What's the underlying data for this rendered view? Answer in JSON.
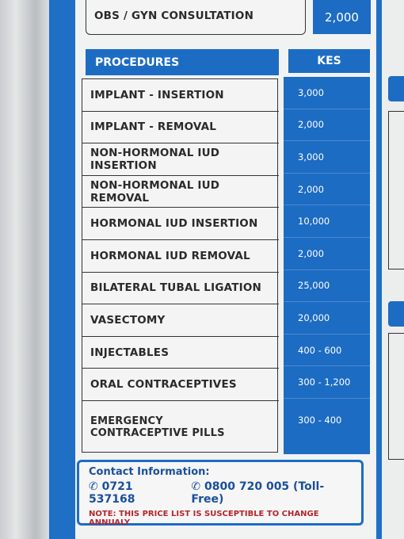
{
  "consultation": {
    "label": "OBS / GYN CONSULTATION",
    "price": "2,000"
  },
  "table": {
    "header": [
      "PROCEDURES",
      "KES"
    ],
    "rows": [
      [
        "IMPLANT - INSERTION",
        "3,000"
      ],
      [
        "IMPLANT - REMOVAL",
        "2,000"
      ],
      [
        "NON-HORMONAL IUD INSERTION",
        "3,000"
      ],
      [
        "NON-HORMONAL IUD REMOVAL",
        "2,000"
      ],
      [
        "HORMONAL IUD INSERTION",
        "10,000"
      ],
      [
        "HORMONAL IUD REMOVAL",
        "2,000"
      ],
      [
        "BILATERAL TUBAL LIGATION",
        "25,000"
      ],
      [
        "VASECTOMY",
        "20,000"
      ],
      [
        "INJECTABLES",
        "400 - 600"
      ],
      [
        "ORAL CONTRACEPTIVES",
        "300 - 1,200"
      ],
      [
        "EMERGENCY CONTRACEPTIVE PILLS",
        "300 - 400"
      ]
    ]
  },
  "contact": {
    "title": "Contact Information:",
    "phones": [
      "✆ 0721 537168",
      "✆ 0800 720 005 (Toll-Free)"
    ],
    "note": "NOTE:  THIS PRICE LIST IS SUSCEPTIBLE TO CHANGE ANNUALY"
  }
}
